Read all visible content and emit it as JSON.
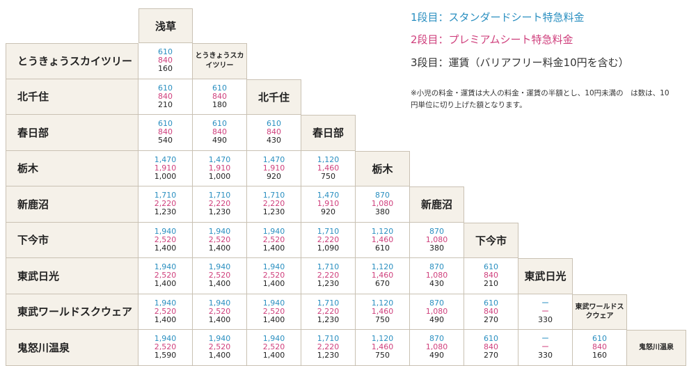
{
  "legend": {
    "line1": "1段目：スタンダードシート特急料金",
    "line2": "2段目：プレミアムシート特急料金",
    "line3": "3段目：運賃（バリアフリー料金10円を含む）"
  },
  "note": "※小児の料金・運賃は大人の料金・運賃の半額とし、10円未満の　は数は、10円単位に切り上げた額となります。",
  "colors": {
    "standard": "#2a8fc0",
    "premium": "#cf3f7c",
    "fare": "#222222",
    "label_bg": "#f5f1e9"
  },
  "diagonal_labels": [
    "浅草",
    "とうきょうスカイツリー",
    "北千住",
    "春日部",
    "栃木",
    "新鹿沼",
    "下今市",
    "東武日光",
    "東武ワールドスクウェア",
    "鬼怒川温泉"
  ],
  "rows": [
    {
      "station": "とうきょうスカイツリー",
      "fares": [
        [
          "610",
          "840",
          "160"
        ]
      ]
    },
    {
      "station": "北千住",
      "fares": [
        [
          "610",
          "840",
          "210"
        ],
        [
          "610",
          "840",
          "180"
        ]
      ]
    },
    {
      "station": "春日部",
      "fares": [
        [
          "610",
          "840",
          "540"
        ],
        [
          "610",
          "840",
          "490"
        ],
        [
          "610",
          "840",
          "430"
        ]
      ]
    },
    {
      "station": "栃木",
      "fares": [
        [
          "1,470",
          "1,910",
          "1,000"
        ],
        [
          "1,470",
          "1,910",
          "1,000"
        ],
        [
          "1,470",
          "1,910",
          "920"
        ],
        [
          "1,120",
          "1,460",
          "750"
        ]
      ]
    },
    {
      "station": "新鹿沼",
      "fares": [
        [
          "1,710",
          "2,220",
          "1,230"
        ],
        [
          "1,710",
          "2,220",
          "1,230"
        ],
        [
          "1,710",
          "2,220",
          "1,230"
        ],
        [
          "1,470",
          "1,910",
          "920"
        ],
        [
          "870",
          "1,080",
          "380"
        ]
      ]
    },
    {
      "station": "下今市",
      "fares": [
        [
          "1,940",
          "2,520",
          "1,400"
        ],
        [
          "1,940",
          "2,520",
          "1,400"
        ],
        [
          "1,940",
          "2,520",
          "1,400"
        ],
        [
          "1,710",
          "2,220",
          "1,090"
        ],
        [
          "1,120",
          "1,460",
          "610"
        ],
        [
          "870",
          "1,080",
          "380"
        ]
      ]
    },
    {
      "station": "東武日光",
      "fares": [
        [
          "1,940",
          "2,520",
          "1,400"
        ],
        [
          "1,940",
          "2,520",
          "1,400"
        ],
        [
          "1,940",
          "2,520",
          "1,400"
        ],
        [
          "1,710",
          "2,220",
          "1,230"
        ],
        [
          "1,120",
          "1,460",
          "670"
        ],
        [
          "870",
          "1,080",
          "430"
        ],
        [
          "610",
          "840",
          "210"
        ]
      ]
    },
    {
      "station": "東武ワールドスクウェア",
      "fares": [
        [
          "1,940",
          "2,520",
          "1,400"
        ],
        [
          "1,940",
          "2,520",
          "1,400"
        ],
        [
          "1,940",
          "2,520",
          "1,400"
        ],
        [
          "1,710",
          "2,220",
          "1,230"
        ],
        [
          "1,120",
          "1,460",
          "750"
        ],
        [
          "870",
          "1,080",
          "490"
        ],
        [
          "610",
          "840",
          "270"
        ],
        [
          "ー",
          "ー",
          "330"
        ]
      ]
    },
    {
      "station": "鬼怒川温泉",
      "fares": [
        [
          "1,940",
          "2,520",
          "1,590"
        ],
        [
          "1,940",
          "2,520",
          "1,400"
        ],
        [
          "1,940",
          "2,520",
          "1,400"
        ],
        [
          "1,710",
          "2,220",
          "1,230"
        ],
        [
          "1,120",
          "1,460",
          "750"
        ],
        [
          "870",
          "1,080",
          "490"
        ],
        [
          "610",
          "840",
          "270"
        ],
        [
          "ー",
          "ー",
          "330"
        ],
        [
          "610",
          "840",
          "160"
        ]
      ]
    }
  ]
}
